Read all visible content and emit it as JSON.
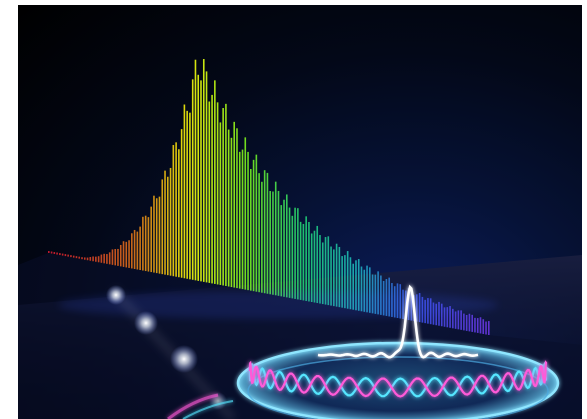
{
  "image": {
    "subject": "frequency-comb-illustration",
    "palette": {
      "background": "#000000",
      "deep_blue": "#0b1c5a",
      "red": "#ff2a2a",
      "yellow": "#f5e60a",
      "green": "#22e07a",
      "blue": "#3a5bff",
      "violet": "#7a3cff",
      "cyan": "#55e6ff",
      "magenta": "#ff5ad8",
      "white_glow": "#ffffff"
    },
    "spectrum": {
      "bar_count": 160,
      "peak_fraction": 0.34,
      "skew": "left-steep-right-long"
    }
  }
}
